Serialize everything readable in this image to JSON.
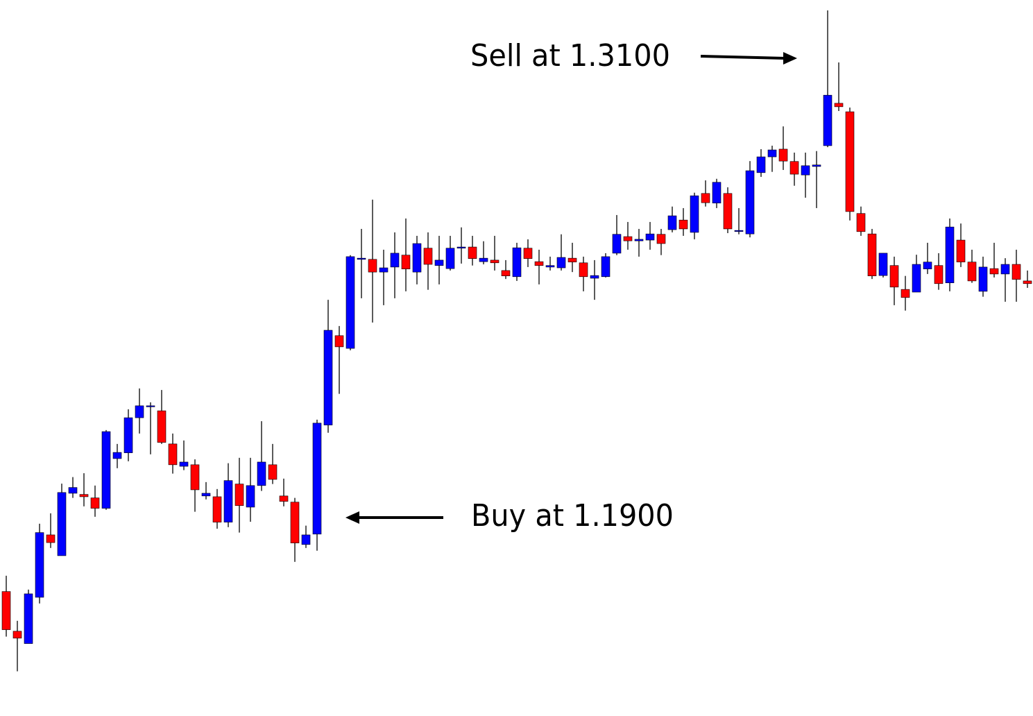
{
  "chart_data": {
    "type": "candlestick",
    "annotations": [
      "Sell at 1.3100",
      "Buy at 1.1900"
    ],
    "open": [
      1.1715,
      1.1612,
      1.158,
      1.17,
      1.1862,
      1.1808,
      1.197,
      1.1967,
      1.1958,
      1.1931,
      1.206,
      1.2075,
      1.2166,
      1.2195,
      1.2184,
      1.2098,
      1.204,
      1.2044,
      1.1963,
      1.1961,
      1.1895,
      1.1994,
      1.1934,
      1.199,
      1.2044,
      1.1963,
      1.1947,
      1.1837,
      1.1864,
      1.2147,
      1.2379,
      1.2346,
      1.2577,
      1.2577,
      1.2544,
      1.2557,
      1.2588,
      1.2544,
      1.2606,
      1.2561,
      1.2553,
      1.2606,
      1.2609,
      1.2571,
      1.2575,
      1.2548,
      1.2532,
      1.2606,
      1.2571,
      1.2557,
      1.2555,
      1.258,
      1.2568,
      1.2528,
      1.2532,
      1.2593,
      1.2636,
      1.2625,
      1.2627,
      1.2642,
      1.2654,
      1.2679,
      1.2647,
      1.2748,
      1.2723,
      1.2748,
      1.2651,
      1.2643,
      1.2802,
      1.2843,
      1.2863,
      1.2831,
      1.2796,
      1.2818,
      1.2872,
      1.2982,
      1.296,
      1.2696,
      1.2643,
      1.2535,
      1.2561,
      1.2499,
      1.2492,
      1.2552,
      1.2561,
      1.2516,
      1.2627,
      1.257,
      1.2494,
      1.2553,
      1.2539,
      1.2564,
      1.2521
    ],
    "high": [
      1.1756,
      1.1639,
      1.172,
      1.1891,
      1.1918,
      1.1995,
      1.2012,
      1.2022,
      1.199,
      1.2134,
      1.2098,
      1.2188,
      1.2242,
      1.2206,
      1.2238,
      1.2125,
      1.2107,
      1.2058,
      1.1999,
      1.1981,
      1.2048,
      1.2062,
      1.2062,
      1.2157,
      1.2098,
      1.2008,
      1.1958,
      1.1886,
      1.2161,
      1.2472,
      1.2404,
      1.2588,
      1.2656,
      1.2732,
      1.2602,
      1.2647,
      1.2683,
      1.2638,
      1.2647,
      1.2638,
      1.2638,
      1.266,
      1.2638,
      1.2624,
      1.2638,
      1.2575,
      1.262,
      1.2629,
      1.2602,
      1.2584,
      1.2642,
      1.262,
      1.2584,
      1.2575,
      1.2593,
      1.2692,
      1.2674,
      1.2656,
      1.2674,
      1.2656,
      1.2714,
      1.271,
      1.275,
      1.2782,
      1.2786,
      1.2764,
      1.271,
      1.2832,
      1.2863,
      1.2872,
      1.2922,
      1.2854,
      1.2854,
      1.2858,
      1.3223,
      1.3088,
      1.2971,
      1.2714,
      1.2656,
      1.2593,
      1.2584,
      1.2534,
      1.2589,
      1.262,
      1.2593,
      1.2683,
      1.267,
      1.2602,
      1.2584,
      1.262,
      1.258,
      1.2602,
      1.2548
    ],
    "low": [
      1.1598,
      1.1508,
      1.158,
      1.1684,
      1.1828,
      1.1808,
      1.1958,
      1.1936,
      1.1909,
      1.1927,
      1.2035,
      1.2053,
      1.2125,
      1.2071,
      1.2098,
      1.2021,
      1.203,
      1.1922,
      1.1954,
      1.1878,
      1.1882,
      1.1868,
      1.1896,
      1.1976,
      1.1994,
      1.1936,
      1.1792,
      1.1828,
      1.1821,
      1.2127,
      1.2228,
      1.2341,
      1.2476,
      1.2413,
      1.2458,
      1.2476,
      1.2494,
      1.2512,
      1.2498,
      1.2512,
      1.2548,
      1.2566,
      1.2561,
      1.2564,
      1.2548,
      1.2526,
      1.2521,
      1.2557,
      1.2512,
      1.2548,
      1.2548,
      1.2544,
      1.2494,
      1.2472,
      1.253,
      1.2588,
      1.2602,
      1.2584,
      1.2602,
      1.2588,
      1.2647,
      1.2638,
      1.2629,
      1.2714,
      1.271,
      1.2645,
      1.2642,
      1.2634,
      1.2791,
      1.2804,
      1.2809,
      1.2768,
      1.2737,
      1.271,
      1.2868,
      1.2962,
      1.2678,
      1.2638,
      1.2526,
      1.253,
      1.2458,
      1.2444,
      1.2492,
      1.2539,
      1.2498,
      1.2494,
      1.2557,
      1.2516,
      1.248,
      1.253,
      1.2467,
      1.2467,
      1.2503
    ],
    "close": [
      1.1616,
      1.1594,
      1.1709,
      1.1868,
      1.1842,
      1.1972,
      1.1985,
      1.1961,
      1.1931,
      1.213,
      1.2076,
      1.2166,
      1.2197,
      1.2197,
      1.2102,
      1.2044,
      1.2051,
      1.1979,
      1.197,
      1.1895,
      1.2003,
      1.1938,
      1.199,
      1.2051,
      1.2006,
      1.1949,
      1.1841,
      1.1862,
      1.2152,
      1.2393,
      1.235,
      1.2584,
      1.258,
      1.2544,
      1.2555,
      1.2593,
      1.2552,
      1.2618,
      1.2564,
      1.2575,
      1.2606,
      1.2609,
      1.2579,
      1.258,
      1.2568,
      1.2534,
      1.2607,
      1.2579,
      1.2561,
      1.2561,
      1.2582,
      1.257,
      1.2532,
      1.2535,
      1.2584,
      1.2642,
      1.2625,
      1.2629,
      1.2643,
      1.2618,
      1.269,
      1.2656,
      1.2742,
      1.2724,
      1.2777,
      1.2656,
      1.2652,
      1.2807,
      1.2843,
      1.2861,
      1.2832,
      1.2798,
      1.282,
      1.2822,
      1.3003,
      1.2973,
      1.2701,
      1.2649,
      1.2534,
      1.2593,
      1.2505,
      1.2478,
      1.2564,
      1.257,
      1.2514,
      1.2661,
      1.257,
      1.2521,
      1.2557,
      1.2539,
      1.2564,
      1.2525,
      1.2514
    ],
    "up_color": "#0000ff",
    "down_color": "#ff0000",
    "wick_color": "#000000",
    "ylim": [
      1.1392,
      1.325
    ]
  }
}
